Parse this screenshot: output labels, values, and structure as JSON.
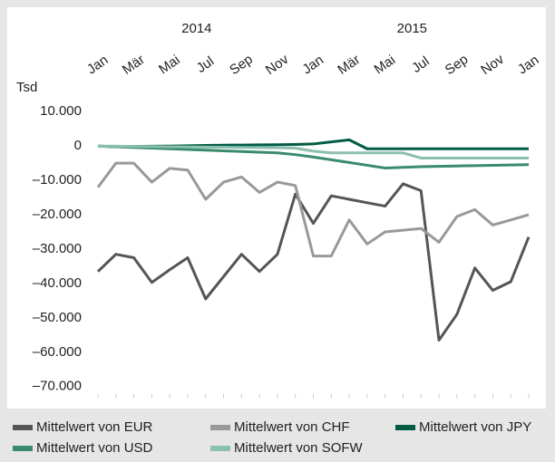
{
  "chart_data": {
    "type": "line",
    "y_label": "Tsd",
    "years": [
      "2014",
      "2015"
    ],
    "categories": [
      "Jan",
      null,
      "Mär",
      null,
      "Mai",
      null,
      "Jul",
      null,
      "Sep",
      null,
      "Nov",
      null,
      "Jan",
      null,
      "Mär",
      null,
      "Mai",
      null,
      "Jul",
      null,
      "Sep",
      null,
      "Nov",
      null,
      "Jan"
    ],
    "series": [
      {
        "name": "Mittelwert von EUR",
        "color": "#555555",
        "values": [
          -36500,
          -31500,
          -32500,
          -39700,
          -36000,
          -32500,
          -44500,
          -38000,
          -31500,
          -36500,
          -31500,
          -14000,
          -22500,
          -14500,
          -15500,
          -16500,
          -17500,
          -11000,
          -13000,
          -56500,
          -49000,
          -35500,
          -42000,
          -39500,
          -26500
        ]
      },
      {
        "name": "Mittelwert von CHF",
        "color": "#999999",
        "values": [
          -12000,
          -5000,
          -5000,
          -10500,
          -6500,
          -7000,
          -15500,
          -10500,
          -9000,
          -13500,
          -10500,
          -11500,
          -32000,
          -32000,
          -21500,
          -28500,
          -25000,
          -24500,
          -24000,
          -28000,
          -20500,
          -18500,
          -23000,
          -21500,
          -20000
        ]
      },
      {
        "name": "Mittelwert von JPY",
        "color": "#005c45",
        "values": [
          0,
          -200,
          -100,
          -50,
          0,
          100,
          200,
          250,
          300,
          350,
          400,
          450,
          600,
          1200,
          1800,
          -800,
          -800,
          -800,
          -800,
          -800,
          -800,
          -800,
          -800,
          -800,
          -800
        ]
      },
      {
        "name": "Mittelwert von USD",
        "color": "#3a8a70",
        "values": [
          0,
          -200,
          -400,
          -600,
          -800,
          -1000,
          -1200,
          -1400,
          -1600,
          -1800,
          -2000,
          -2500,
          -3200,
          -4000,
          -4800,
          -5600,
          -6400,
          -6200,
          -6000,
          -5900,
          -5800,
          -5700,
          -5600,
          -5500,
          -5400
        ]
      },
      {
        "name": "Mittelwert von SOFW",
        "color": "#8cc0ae",
        "values": [
          0,
          -50,
          -100,
          -150,
          -200,
          -250,
          -300,
          -350,
          -400,
          -450,
          -500,
          -600,
          -1500,
          -2000,
          -2000,
          -2000,
          -2000,
          -2000,
          -3500,
          -3500,
          -3500,
          -3500,
          -3500,
          -3500,
          -3500
        ]
      }
    ],
    "ylim": [
      -73500,
      13500
    ],
    "yticks": [
      {
        "value": 10000,
        "label": "10.000"
      },
      0,
      {
        "value": -10000,
        "label": "–10.000"
      },
      {
        "value": -20000,
        "label": "–20.000"
      },
      {
        "value": -30000,
        "label": "–30.000"
      },
      {
        "value": -40000,
        "label": "–40.000"
      },
      {
        "value": -50000,
        "label": "–50.000"
      },
      {
        "value": -60000,
        "label": "–60.000"
      },
      {
        "value": -70000,
        "label": "–70.000"
      }
    ],
    "grid": false
  }
}
